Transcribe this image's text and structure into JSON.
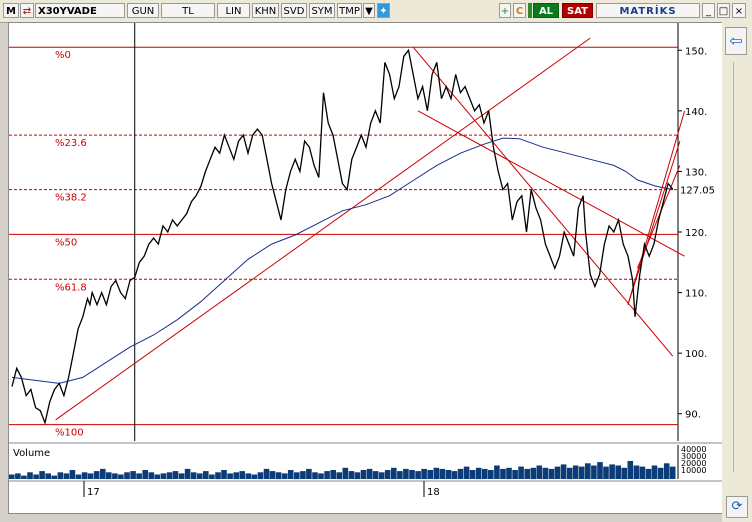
{
  "toolbar": {
    "logo": "M",
    "symbol": "X30YVADE",
    "buttons": [
      "GUN",
      "TL",
      "LIN",
      "KHN",
      "SVD",
      "SYM",
      "TMP"
    ],
    "buy_label": "AL",
    "sell_label": "SAT",
    "brand": "MATRİKS",
    "refresh_glyph": "C"
  },
  "colors": {
    "price": "#000000",
    "moving_average": "#1a2d8c",
    "fib_lines": "#cc0000",
    "trend_lines": "#cc0000",
    "volume": "#0b3c78",
    "buy": "#0a7a1e",
    "sell": "#b00000"
  },
  "chart_data": {
    "type": "line",
    "fib_levels": [
      {
        "label": "%0",
        "value": 150.5,
        "style": "solid"
      },
      {
        "label": "%23.6",
        "value": 136,
        "style": "dashed"
      },
      {
        "label": "%38.2",
        "value": 127,
        "style": "dashed"
      },
      {
        "label": "%50",
        "value": 119.6,
        "style": "solid"
      },
      {
        "label": "%61.8",
        "value": 112.2,
        "style": "dashed"
      },
      {
        "label": "%100",
        "value": 88.2,
        "style": "solid"
      }
    ],
    "y_ticks": [
      90,
      100,
      110,
      120,
      130,
      140,
      150
    ],
    "ylim": [
      85.5,
      154.5
    ],
    "last_value": "127.05",
    "x_ticks": [
      "17",
      "18"
    ],
    "price": [
      [
        0,
        94.5
      ],
      [
        4,
        97.5
      ],
      [
        8,
        96
      ],
      [
        12,
        93
      ],
      [
        16,
        94
      ],
      [
        20,
        91
      ],
      [
        24,
        90.5
      ],
      [
        28,
        88.5
      ],
      [
        32,
        92
      ],
      [
        36,
        94
      ],
      [
        40,
        95
      ],
      [
        44,
        93
      ],
      [
        48,
        96
      ],
      [
        52,
        100
      ],
      [
        56,
        104
      ],
      [
        60,
        106
      ],
      [
        64,
        109
      ],
      [
        66,
        108
      ],
      [
        68,
        110
      ],
      [
        72,
        108
      ],
      [
        76,
        110
      ],
      [
        80,
        108
      ],
      [
        84,
        111
      ],
      [
        88,
        112
      ],
      [
        92,
        110
      ],
      [
        96,
        109
      ],
      [
        100,
        112
      ],
      [
        104,
        112.5
      ],
      [
        108,
        115
      ],
      [
        112,
        116
      ],
      [
        116,
        118
      ],
      [
        120,
        119
      ],
      [
        124,
        118
      ],
      [
        128,
        121
      ],
      [
        132,
        120
      ],
      [
        136,
        122
      ],
      [
        140,
        121
      ],
      [
        144,
        122
      ],
      [
        148,
        123
      ],
      [
        152,
        125
      ],
      [
        156,
        126
      ],
      [
        160,
        127.5
      ],
      [
        164,
        130
      ],
      [
        168,
        132
      ],
      [
        172,
        134
      ],
      [
        176,
        133
      ],
      [
        180,
        136
      ],
      [
        184,
        134
      ],
      [
        188,
        132
      ],
      [
        192,
        135
      ],
      [
        196,
        136
      ],
      [
        200,
        133
      ],
      [
        204,
        136
      ],
      [
        208,
        137
      ],
      [
        212,
        136
      ],
      [
        216,
        132
      ],
      [
        220,
        128
      ],
      [
        224,
        125
      ],
      [
        228,
        122
      ],
      [
        232,
        127
      ],
      [
        236,
        130
      ],
      [
        240,
        132
      ],
      [
        244,
        130
      ],
      [
        248,
        135
      ],
      [
        252,
        134
      ],
      [
        256,
        131
      ],
      [
        260,
        129
      ],
      [
        264,
        143
      ],
      [
        268,
        138
      ],
      [
        272,
        136
      ],
      [
        276,
        132
      ],
      [
        280,
        128
      ],
      [
        284,
        127
      ],
      [
        288,
        132
      ],
      [
        292,
        134
      ],
      [
        296,
        136
      ],
      [
        300,
        134
      ],
      [
        304,
        138
      ],
      [
        308,
        140
      ],
      [
        312,
        138
      ],
      [
        316,
        148
      ],
      [
        320,
        146
      ],
      [
        324,
        142
      ],
      [
        328,
        144
      ],
      [
        332,
        149
      ],
      [
        336,
        150
      ],
      [
        340,
        146
      ],
      [
        344,
        142
      ],
      [
        348,
        144
      ],
      [
        352,
        140
      ],
      [
        356,
        146
      ],
      [
        360,
        148
      ],
      [
        364,
        142
      ],
      [
        368,
        144
      ],
      [
        372,
        142
      ],
      [
        376,
        146
      ],
      [
        380,
        143
      ],
      [
        384,
        144
      ],
      [
        388,
        142
      ],
      [
        392,
        140
      ],
      [
        396,
        141
      ],
      [
        400,
        138
      ],
      [
        404,
        140
      ],
      [
        408,
        134
      ],
      [
        412,
        130
      ],
      [
        416,
        127
      ],
      [
        420,
        128
      ],
      [
        424,
        122
      ],
      [
        428,
        125
      ],
      [
        432,
        126
      ],
      [
        436,
        120
      ],
      [
        440,
        127
      ],
      [
        444,
        124
      ],
      [
        448,
        122
      ],
      [
        452,
        118
      ],
      [
        456,
        116
      ],
      [
        460,
        114
      ],
      [
        464,
        116
      ],
      [
        468,
        120
      ],
      [
        472,
        118
      ],
      [
        476,
        116
      ],
      [
        480,
        124
      ],
      [
        484,
        126
      ],
      [
        486,
        120
      ],
      [
        490,
        113
      ],
      [
        494,
        111
      ],
      [
        498,
        113
      ],
      [
        502,
        118
      ],
      [
        506,
        121
      ],
      [
        510,
        120
      ],
      [
        514,
        122
      ],
      [
        518,
        118
      ],
      [
        522,
        116
      ],
      [
        526,
        112
      ],
      [
        528,
        106
      ],
      [
        532,
        113
      ],
      [
        536,
        118
      ],
      [
        540,
        116
      ],
      [
        544,
        118
      ],
      [
        548,
        122
      ],
      [
        552,
        125
      ],
      [
        556,
        128
      ],
      [
        560,
        127.05
      ]
    ],
    "moving_average": [
      [
        0,
        96
      ],
      [
        20,
        95.5
      ],
      [
        40,
        95
      ],
      [
        60,
        96
      ],
      [
        80,
        98.5
      ],
      [
        100,
        101
      ],
      [
        120,
        103
      ],
      [
        140,
        105.5
      ],
      [
        160,
        108.5
      ],
      [
        180,
        112
      ],
      [
        200,
        115.5
      ],
      [
        220,
        118
      ],
      [
        240,
        119.5
      ],
      [
        260,
        121.5
      ],
      [
        280,
        123.5
      ],
      [
        300,
        124.5
      ],
      [
        320,
        126
      ],
      [
        340,
        128.5
      ],
      [
        360,
        131
      ],
      [
        380,
        133
      ],
      [
        400,
        134.5
      ],
      [
        416,
        135.5
      ],
      [
        430,
        135.4
      ],
      [
        450,
        134
      ],
      [
        470,
        133
      ],
      [
        490,
        132
      ],
      [
        510,
        131
      ],
      [
        520,
        130
      ],
      [
        530,
        128.6
      ],
      [
        545,
        127.6
      ],
      [
        560,
        127
      ]
    ],
    "trend_lines": [
      [
        [
          37,
          89
        ],
        [
          490,
          152
        ]
      ],
      [
        [
          340,
          150.5
        ],
        [
          560,
          99.5
        ]
      ],
      [
        [
          344,
          140
        ],
        [
          570,
          116
        ]
      ],
      [
        [
          522,
          108
        ],
        [
          570,
          140
        ]
      ],
      [
        [
          522,
          108
        ],
        [
          566,
          135
        ]
      ],
      [
        [
          530,
          114
        ],
        [
          566,
          131
        ]
      ]
    ],
    "cursor_x": 104,
    "volume_label": "Volume",
    "volume_ticks": [
      "40000",
      "30000",
      "20000",
      "10000"
    ],
    "volume": [
      4,
      5,
      3,
      6,
      4,
      7,
      5,
      3,
      6,
      5,
      8,
      4,
      6,
      5,
      7,
      9,
      6,
      5,
      4,
      6,
      7,
      5,
      8,
      6,
      4,
      5,
      6,
      7,
      5,
      9,
      6,
      5,
      7,
      4,
      6,
      8,
      5,
      6,
      7,
      5,
      4,
      6,
      9,
      7,
      6,
      5,
      8,
      6,
      7,
      9,
      6,
      5,
      7,
      8,
      6,
      10,
      7,
      6,
      8,
      9,
      7,
      6,
      8,
      10,
      7,
      9,
      8,
      7,
      9,
      8,
      10,
      9,
      8,
      7,
      9,
      11,
      8,
      10,
      9,
      8,
      12,
      9,
      10,
      8,
      11,
      9,
      10,
      12,
      10,
      9,
      11,
      13,
      10,
      12,
      11,
      14,
      12,
      15,
      11,
      13,
      12,
      10,
      16,
      12,
      11,
      9,
      12,
      10,
      14,
      11
    ]
  }
}
